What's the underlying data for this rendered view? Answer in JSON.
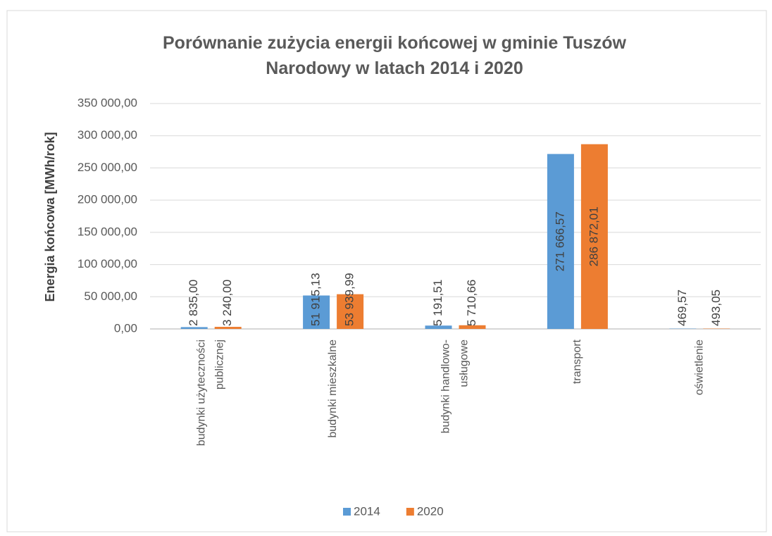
{
  "chart_data": {
    "type": "bar",
    "title": "Porównanie zużycia energii końcowej w gminie Tuszów Narodowy w latach 2014 i 2020",
    "y_label": "Energia końcowa [MWh/rok]",
    "categories": [
      "budynki użyteczności publicznej",
      "budynki mieszkalne",
      "budynki handlowo-usługowe",
      "transport",
      "oświetlenie"
    ],
    "series": [
      {
        "name": "2014",
        "color": "#5b9bd5",
        "values": [
          2835.0,
          51915.13,
          5191.51,
          271666.57,
          469.57
        ],
        "value_labels": [
          "2 835,00",
          "51 915,13",
          "5 191,51",
          "271 666,57",
          "469,57"
        ]
      },
      {
        "name": "2020",
        "color": "#ed7d31",
        "values": [
          3240.0,
          53939.99,
          5710.66,
          286872.01,
          493.05
        ],
        "value_labels": [
          "3 240,00",
          "53 939,99",
          "5 710,66",
          "286 872,01",
          "493,05"
        ]
      }
    ],
    "ylim": [
      0,
      350000
    ],
    "yticks": [
      {
        "value": 0,
        "label": "0,00"
      },
      {
        "value": 50000,
        "label": "50 000,00"
      },
      {
        "value": 100000,
        "label": "100 000,00"
      },
      {
        "value": 150000,
        "label": "150 000,00"
      },
      {
        "value": 200000,
        "label": "200 000,00"
      },
      {
        "value": 250000,
        "label": "250 000,00"
      },
      {
        "value": 300000,
        "label": "300 000,00"
      },
      {
        "value": 350000,
        "label": "350 000,00"
      }
    ],
    "grid": true,
    "legend": "bottom"
  }
}
